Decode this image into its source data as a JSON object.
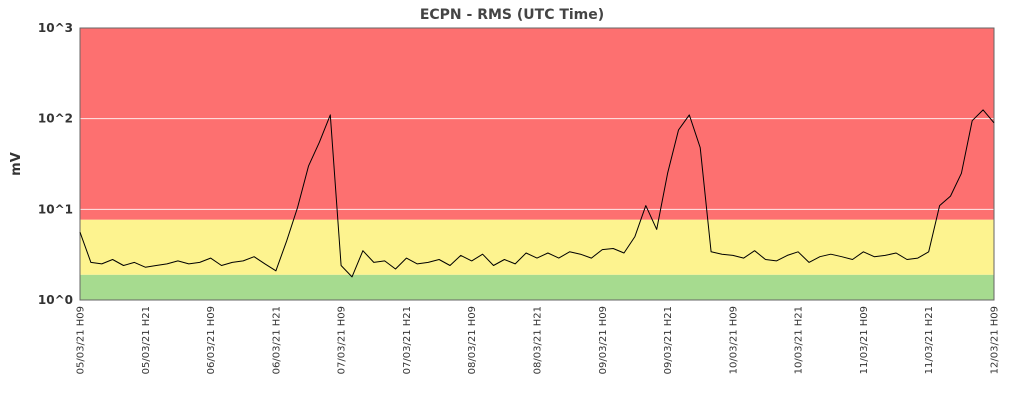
{
  "chart_data": {
    "type": "line",
    "title": "ECPN - RMS (UTC Time)",
    "ylabel": "mV",
    "xlabel": "",
    "yscale": "log",
    "ylim": [
      1,
      1000
    ],
    "ytick_labels": [
      "10^0",
      "10^1",
      "10^2",
      "10^3"
    ],
    "ytick_values": [
      1,
      10,
      100,
      1000
    ],
    "x_start": "05/03/21 H09",
    "x_end": "12/03/21 H09",
    "xtick_labels": [
      "05/03/21 H09",
      "05/03/21 H21",
      "06/03/21 H09",
      "06/03/21 H21",
      "07/03/21 H09",
      "07/03/21 H21",
      "08/03/21 H09",
      "08/03/21 H21",
      "09/03/21 H09",
      "09/03/21 H21",
      "10/03/21 H09",
      "10/03/21 H21",
      "11/03/21 H09",
      "11/03/21 H21",
      "12/03/21 H09"
    ],
    "bands": [
      {
        "from": 1,
        "to": 1.9,
        "color": "#a6db8f"
      },
      {
        "from": 1.9,
        "to": 7.7,
        "color": "#fdf38f"
      },
      {
        "from": 7.7,
        "to": 1000,
        "color": "#fd7070"
      }
    ],
    "grid": true,
    "line_color": "#000000",
    "series": [
      {
        "x": [
          "05/03/21 H09",
          "05/03/21 H11",
          "05/03/21 H13",
          "05/03/21 H15",
          "05/03/21 H17",
          "05/03/21 H19",
          "05/03/21 H21",
          "05/03/21 H23",
          "06/03/21 H01",
          "06/03/21 H03",
          "06/03/21 H05",
          "06/03/21 H07",
          "06/03/21 H09",
          "06/03/21 H11",
          "06/03/21 H13",
          "06/03/21 H15",
          "06/03/21 H17",
          "06/03/21 H19",
          "06/03/21 H21",
          "06/03/21 H23",
          "07/03/21 H01",
          "07/03/21 H03",
          "07/03/21 H05",
          "07/03/21 H07",
          "07/03/21 H09",
          "07/03/21 H11",
          "07/03/21 H13",
          "07/03/21 H15",
          "07/03/21 H17",
          "07/03/21 H19",
          "07/03/21 H21",
          "07/03/21 H23",
          "08/03/21 H01",
          "08/03/21 H03",
          "08/03/21 H05",
          "08/03/21 H07",
          "08/03/21 H09",
          "08/03/21 H11",
          "08/03/21 H13",
          "08/03/21 H15",
          "08/03/21 H17",
          "08/03/21 H19",
          "08/03/21 H21",
          "08/03/21 H23",
          "09/03/21 H01",
          "09/03/21 H03",
          "09/03/21 H05",
          "09/03/21 H07",
          "09/03/21 H09",
          "09/03/21 H11",
          "09/03/21 H13",
          "09/03/21 H15",
          "09/03/21 H17",
          "09/03/21 H19",
          "09/03/21 H21",
          "09/03/21 H23",
          "10/03/21 H01",
          "10/03/21 H03",
          "10/03/21 H05",
          "10/03/21 H07",
          "10/03/21 H09",
          "10/03/21 H11",
          "10/03/21 H13",
          "10/03/21 H15",
          "10/03/21 H17",
          "10/03/21 H19",
          "10/03/21 H21",
          "10/03/21 H23",
          "11/03/21 H01",
          "11/03/21 H03",
          "11/03/21 H05",
          "11/03/21 H07",
          "11/03/21 H09",
          "11/03/21 H11",
          "11/03/21 H13",
          "11/03/21 H15",
          "11/03/21 H17",
          "11/03/21 H19",
          "11/03/21 H21",
          "11/03/21 H23",
          "12/03/21 H01",
          "12/03/21 H03",
          "12/03/21 H05",
          "12/03/21 H07",
          "12/03/21 H09"
        ],
        "values": [
          5.6,
          2.6,
          2.5,
          2.8,
          2.4,
          2.6,
          2.3,
          2.4,
          2.5,
          2.7,
          2.5,
          2.6,
          2.9,
          2.4,
          2.6,
          2.7,
          3.0,
          2.5,
          2.1,
          4.5,
          10.5,
          30,
          55,
          110,
          2.4,
          1.8,
          3.5,
          2.6,
          2.7,
          2.2,
          2.9,
          2.5,
          2.6,
          2.8,
          2.4,
          3.1,
          2.7,
          3.2,
          2.4,
          2.8,
          2.5,
          3.3,
          2.9,
          3.3,
          2.9,
          3.4,
          3.2,
          2.9,
          3.6,
          3.7,
          3.3,
          5.0,
          11,
          6.0,
          25,
          75,
          110,
          48,
          3.4,
          3.2,
          3.1,
          2.9,
          3.5,
          2.8,
          2.7,
          3.1,
          3.4,
          2.6,
          3.0,
          3.2,
          3.0,
          2.8,
          3.4,
          3.0,
          3.1,
          3.3,
          2.8,
          2.9,
          3.4,
          11,
          14,
          25,
          95,
          125,
          90
        ]
      }
    ]
  }
}
